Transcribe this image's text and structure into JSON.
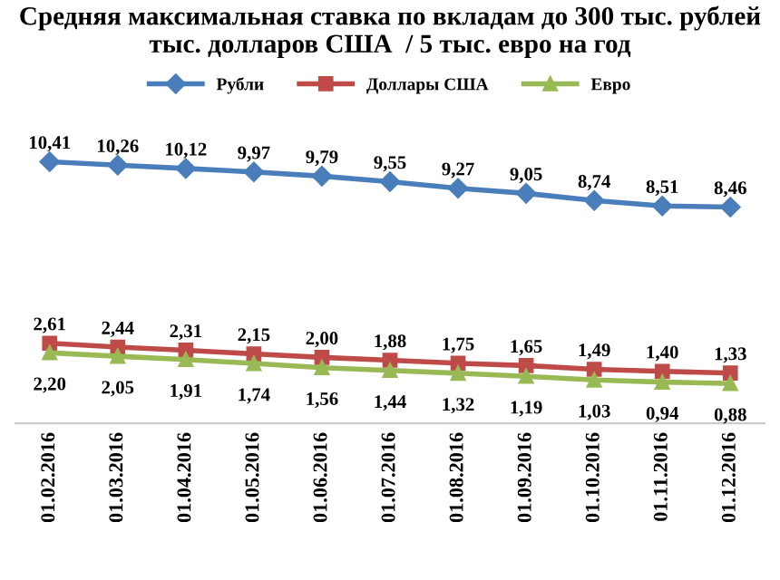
{
  "chart_data": {
    "type": "line",
    "title": "Средняя максимальная ставка по вкладам до 300 тыс. рублей\nтыс. долларов США  / 5 тыс. евро на год",
    "categories": [
      "01.02.2016",
      "01.03.2016",
      "01.04.2016",
      "01.05.2016",
      "01.06.2016",
      "01.07.2016",
      "01.08.2016",
      "01.09.2016",
      "01.10.2016",
      "01.11.2016",
      "01.12.2016"
    ],
    "series": [
      {
        "name": "Рубли",
        "color": "#4a7ebb",
        "marker": "diamond",
        "values": [
          10.41,
          10.26,
          10.12,
          9.97,
          9.79,
          9.55,
          9.27,
          9.05,
          8.74,
          8.51,
          8.46
        ],
        "value_labels": [
          "10,41",
          "10,26",
          "10,12",
          "9,97",
          "9,79",
          "9,55",
          "9,27",
          "9,05",
          "8,74",
          "8,51",
          "8,46"
        ]
      },
      {
        "name": "Доллары США",
        "color": "#be4b48",
        "marker": "square",
        "values": [
          2.61,
          2.44,
          2.31,
          2.15,
          2.0,
          1.88,
          1.75,
          1.65,
          1.49,
          1.4,
          1.33
        ],
        "value_labels": [
          "2,61",
          "2,44",
          "2,31",
          "2,15",
          "2,00",
          "1,88",
          "1,75",
          "1,65",
          "1,49",
          "1,40",
          "1,33"
        ]
      },
      {
        "name": "Евро",
        "color": "#98b954",
        "marker": "triangle",
        "values": [
          2.2,
          2.05,
          1.91,
          1.74,
          1.56,
          1.44,
          1.32,
          1.19,
          1.03,
          0.94,
          0.88
        ],
        "value_labels": [
          "2,20",
          "2,05",
          "1,91",
          "1,74",
          "1,56",
          "1,44",
          "1,32",
          "1,19",
          "1,03",
          "0,94",
          "0,88"
        ]
      }
    ],
    "legend": "top",
    "line_style": "solid"
  }
}
